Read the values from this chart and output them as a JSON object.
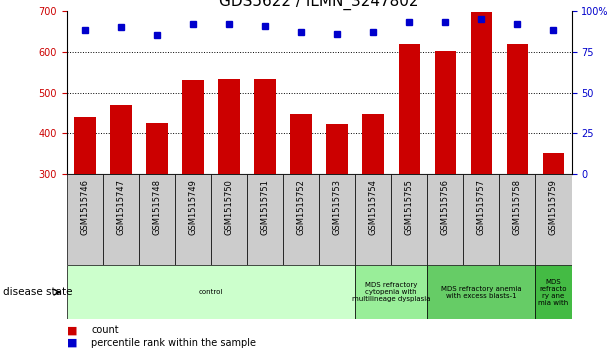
{
  "title": "GDS5622 / ILMN_3247802",
  "samples": [
    "GSM1515746",
    "GSM1515747",
    "GSM1515748",
    "GSM1515749",
    "GSM1515750",
    "GSM1515751",
    "GSM1515752",
    "GSM1515753",
    "GSM1515754",
    "GSM1515755",
    "GSM1515756",
    "GSM1515757",
    "GSM1515758",
    "GSM1515759"
  ],
  "counts": [
    440,
    470,
    425,
    530,
    533,
    532,
    448,
    422,
    447,
    620,
    603,
    698,
    620,
    353
  ],
  "percentile_ranks": [
    88,
    90,
    85,
    92,
    92,
    91,
    87,
    86,
    87,
    93,
    93,
    95,
    92,
    88
  ],
  "ylim_left": [
    300,
    700
  ],
  "ylim_right": [
    0,
    100
  ],
  "yticks_left": [
    300,
    400,
    500,
    600,
    700
  ],
  "yticks_right": [
    0,
    25,
    50,
    75,
    100
  ],
  "bar_color": "#cc0000",
  "dot_color": "#0000cc",
  "disease_groups": [
    {
      "label": "control",
      "start": 0,
      "end": 8,
      "color": "#ccffcc"
    },
    {
      "label": "MDS refractory\ncytopenia with\nmultilineage dysplasia",
      "start": 8,
      "end": 10,
      "color": "#99ee99"
    },
    {
      "label": "MDS refractory anemia\nwith excess blasts-1",
      "start": 10,
      "end": 13,
      "color": "#66cc66"
    },
    {
      "label": "MDS\nrefracto\nry ane\nmia with",
      "start": 13,
      "end": 14,
      "color": "#44bb44"
    }
  ],
  "xlabel_disease": "disease state",
  "legend_count": "count",
  "legend_percentile": "percentile rank within the sample",
  "title_fontsize": 11,
  "tick_fontsize": 7,
  "label_fontsize": 8,
  "grid_yticks": [
    400,
    500,
    600
  ]
}
